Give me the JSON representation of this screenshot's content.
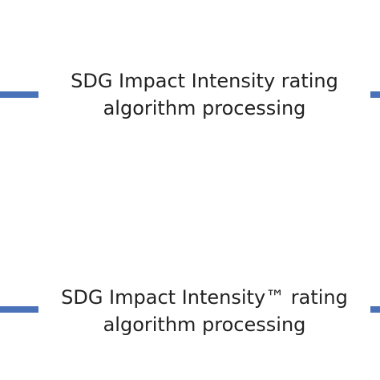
{
  "nodes": [
    {
      "label": "SDG Impact Intensity rating algorithm processing"
    },
    {
      "label": "SDG Impact Intensity™ rating algorithm processing"
    }
  ]
}
